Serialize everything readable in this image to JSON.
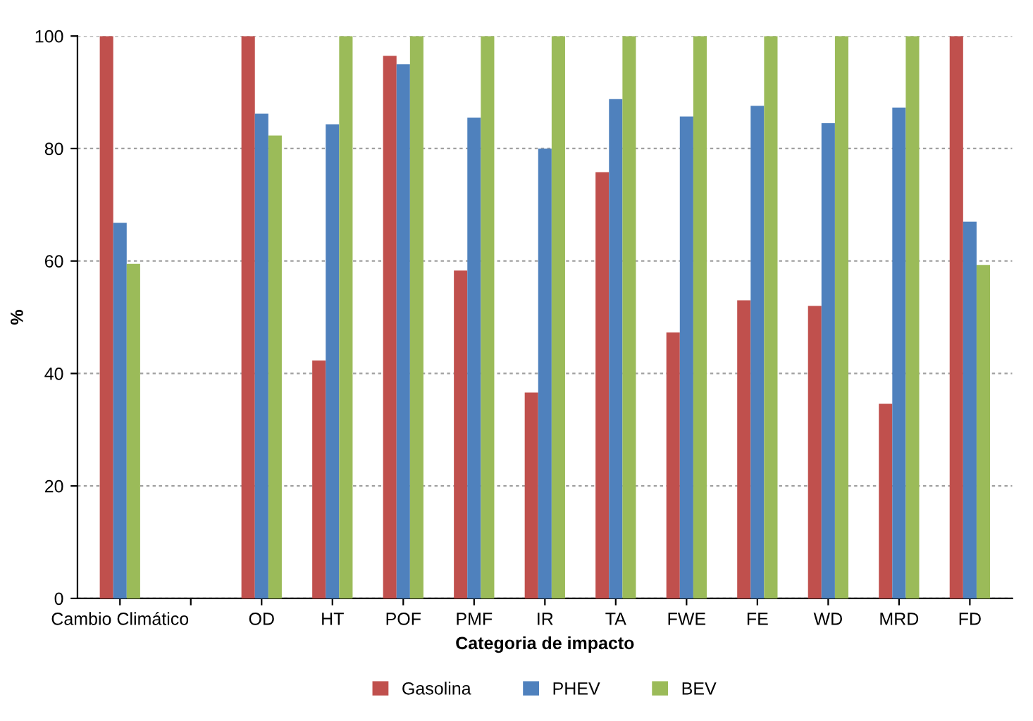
{
  "chart_data": {
    "type": "bar",
    "xlabel": "Categoria de impacto",
    "ylabel": "%",
    "categories": [
      "Cambio Climático",
      null,
      "OD",
      "HT",
      "POF",
      "PMF",
      "IR",
      "TA",
      "FWE",
      "FE",
      "WD",
      "MRD",
      "FD"
    ],
    "series": [
      {
        "name": "Gasolina",
        "color": "#c0504d",
        "values": [
          100,
          null,
          100,
          42.3,
          96.5,
          58.3,
          36.6,
          75.8,
          47.3,
          53,
          52,
          34.6,
          100
        ]
      },
      {
        "name": "PHEV",
        "color": "#4f81bd",
        "values": [
          66.8,
          null,
          86.2,
          84.3,
          95,
          85.5,
          80,
          88.8,
          85.7,
          87.6,
          84.5,
          87.3,
          67
        ]
      },
      {
        "name": "BEV",
        "color": "#9bbb59",
        "values": [
          59.5,
          null,
          82.3,
          100,
          100,
          100,
          100,
          100,
          100,
          100,
          100,
          100,
          59.3
        ]
      }
    ],
    "ylim": [
      0,
      100
    ],
    "yticks": [
      0,
      20,
      40,
      60,
      80,
      100
    ],
    "grid": "y",
    "legend": "bottom"
  }
}
